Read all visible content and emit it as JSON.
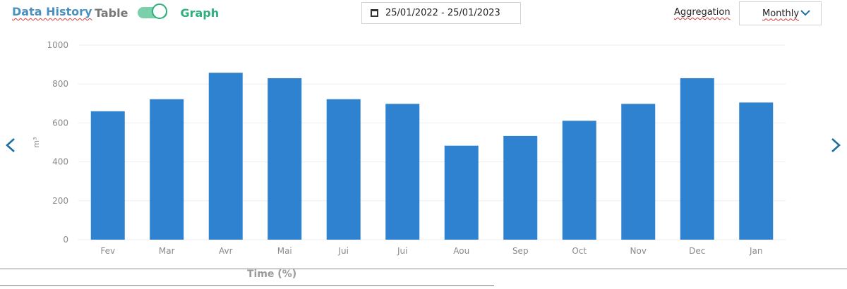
{
  "header": {
    "title": "Data History",
    "table_label": "Table",
    "graph_label": "Graph",
    "toggle_state": "graph",
    "date_range": "25/01/2022  -  25/01/2023",
    "aggregation_label": "Aggregation",
    "aggregation_value": "Monthly"
  },
  "colors": {
    "bar": "#2e82cf",
    "title": "#4a90c0",
    "graph_label": "#2db07c",
    "toggle_track": "#7bd0ab",
    "arrow": "#1e6fa3",
    "chevron": "#1e6fa3",
    "grid": "#eeeeee",
    "tick_text": "#8a8a8a"
  },
  "icons": {
    "calendar": "calendar-icon",
    "chevron": "chevron-down-icon",
    "prev": "chevron-left-icon",
    "next": "chevron-right-icon"
  },
  "footer": {
    "time_label": "Time (%)"
  },
  "chart_data": {
    "type": "bar",
    "categories": [
      "Fev",
      "Mar",
      "Avr",
      "Mai",
      "Jui",
      "Jui",
      "Aou",
      "Sep",
      "Oct",
      "Nov",
      "Dec",
      "Jan"
    ],
    "series": [
      {
        "values": [
          660,
          722,
          858,
          830,
          722,
          698,
          483,
          533,
          611,
          698,
          830,
          705
        ]
      }
    ],
    "xlabel": "",
    "ylabel": "m³",
    "ylim": [
      0,
      1000
    ],
    "yticks": [
      0,
      200,
      400,
      600,
      800,
      1000
    ],
    "grid": true,
    "legend": "none"
  }
}
